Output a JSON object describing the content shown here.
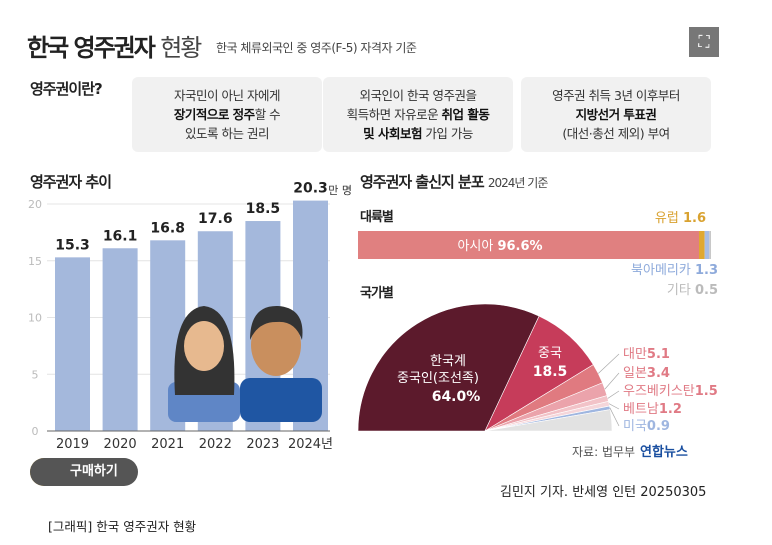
{
  "header": {
    "title_bold": "한국 영주권자",
    "title_light": "현황",
    "subtitle": "한국 체류외국인 중 영주(F-5) 자격자 기준",
    "expand_icon": "expand-icon"
  },
  "definition": {
    "label": "영주권이란?",
    "boxes": [
      {
        "l1": "자국민이 아닌 자에게",
        "l2_bold": "장기적으로 정주",
        "l2": "할 수",
        "l3": "있도록 하는 권리"
      },
      {
        "l1": "외국인이 한국 영주권을",
        "l2": "획득하면 자유로운 ",
        "l2_bold": "취업 활동",
        "l3_bold": "및 사회보험",
        "l3": " 가입 가능"
      },
      {
        "l1": "영주권 취득 3년 이후부터",
        "l2_bold": "지방선거 투표권",
        "l3": "(대선·총선 제외) 부여"
      }
    ]
  },
  "chart_data": [
    {
      "type": "bar",
      "title": "영주권자 추이",
      "categories": [
        "2019",
        "2020",
        "2021",
        "2022",
        "2023",
        "2024년"
      ],
      "values": [
        15.3,
        16.1,
        16.8,
        17.6,
        18.5,
        20.3
      ],
      "value_labels": [
        "15.3",
        "16.1",
        "16.8",
        "17.6",
        "18.5",
        "20.3"
      ],
      "unit": "만 명",
      "yticks": [
        "0",
        "5",
        "10",
        "15",
        "20"
      ],
      "ylim": [
        0,
        20
      ],
      "color": "#a4b8dc"
    },
    {
      "type": "bar",
      "title": "영주권자 출신지 분포",
      "subtitle": "2024년 기준",
      "section": "대륙별",
      "unit": "%",
      "series": [
        {
          "name": "아시아",
          "value": 96.6,
          "label": "96.6%",
          "color": "#e08080"
        },
        {
          "name": "유럽",
          "value": 1.6,
          "label": "1.6",
          "color": "#e0a830"
        },
        {
          "name": "북아메리카",
          "value": 1.3,
          "label": "1.3",
          "color": "#a9bde3"
        },
        {
          "name": "기타",
          "value": 0.5,
          "label": "0.5",
          "color": "#c8c8c8"
        }
      ]
    },
    {
      "type": "pie",
      "section": "국가별",
      "unit": "%",
      "slices": [
        {
          "name": "한국계 중국인(조선족)",
          "name_l1": "한국계",
          "name_l2": "중국인(조선족)",
          "value": 64.0,
          "label": "64.0%",
          "color": "#5c1a2c"
        },
        {
          "name": "중국",
          "value": 18.5,
          "label": "18.5",
          "color": "#c63c5a"
        },
        {
          "name": "대만",
          "value": 5.1,
          "label": "5.1",
          "color": "#e07a80"
        },
        {
          "name": "일본",
          "value": 3.4,
          "label": "3.4",
          "color": "#eba3ab"
        },
        {
          "name": "우즈베키스탄",
          "value": 1.5,
          "label": "1.5",
          "color": "#f2c3c8"
        },
        {
          "name": "베트남",
          "value": 1.2,
          "label": "1.2",
          "color": "#f5d6da"
        },
        {
          "name": "미국",
          "value": 0.9,
          "label": "0.9",
          "color": "#9fb6e0"
        },
        {
          "name": "",
          "value": 5.4,
          "label": "",
          "color": "#e2e2e2"
        }
      ]
    }
  ],
  "footer": {
    "buy_label": "구매하기",
    "buy_icon": "Hello",
    "caption": "[그래픽] 한국 영주권자 현황",
    "source": "자료: 법무부",
    "logo": "연합뉴스",
    "byline": "김민지 기자. 반세영 인턴  20250305"
  }
}
